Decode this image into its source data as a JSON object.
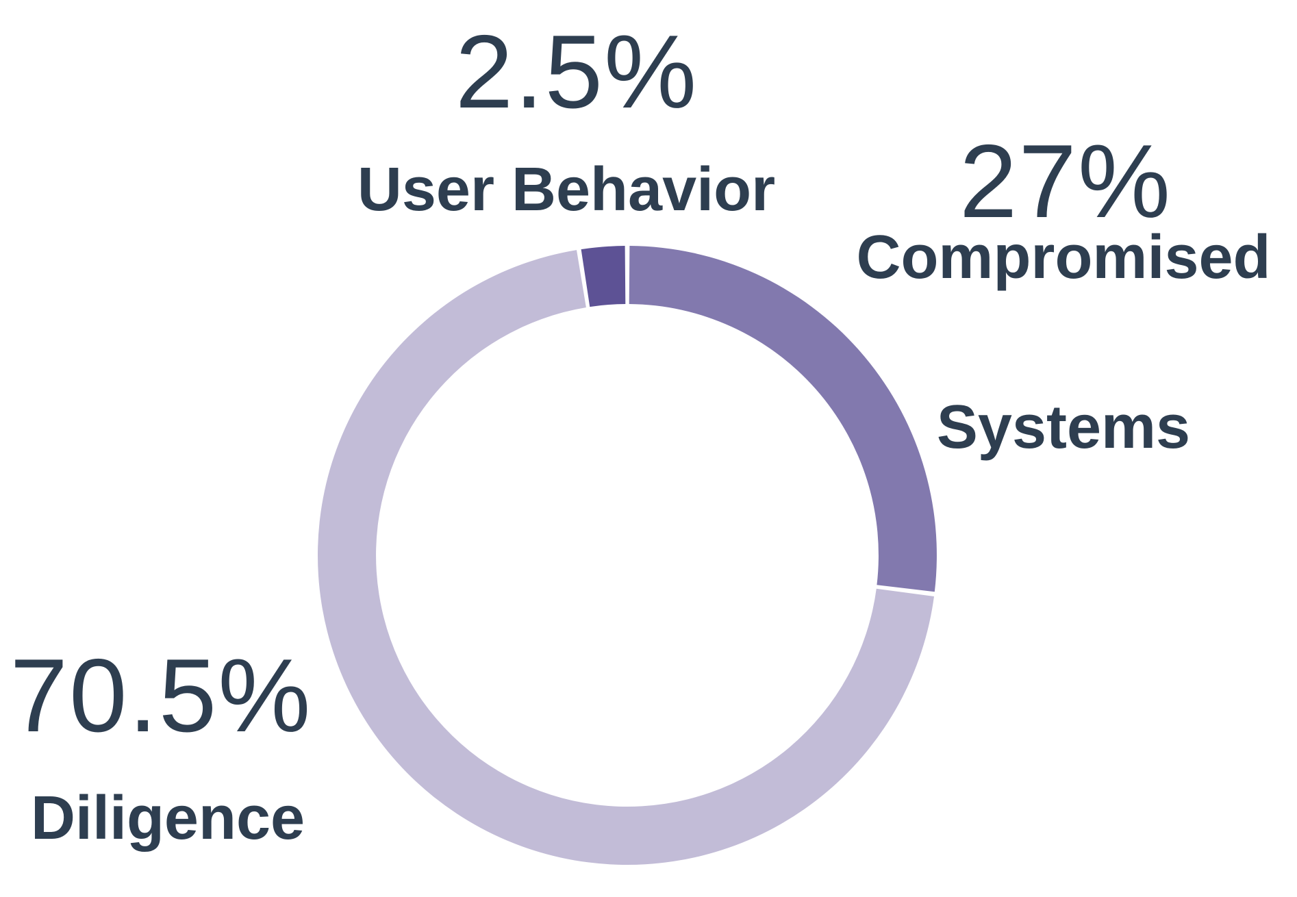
{
  "page": {
    "background": "#ffffff"
  },
  "colors": {
    "text": "#2e3e50",
    "segment_compromised_systems": "#8279ae",
    "segment_diligence": "#c2bcd7",
    "segment_user_behavior": "#5d5295"
  },
  "chart_data": {
    "type": "pie",
    "variant": "donut",
    "title": "",
    "legend_position": "callout-labels-outside",
    "start_angle": "top",
    "direction": "clockwise",
    "categories": [
      "Compromised Systems",
      "Diligence",
      "User Behavior"
    ],
    "values": [
      27,
      70.5,
      2.5
    ],
    "segments": [
      {
        "id": "compromised-systems",
        "label": "Compromised Systems",
        "value": 27,
        "display": "27%",
        "color": "#8279ae"
      },
      {
        "id": "diligence",
        "label": "Diligence",
        "value": 70.5,
        "display": "70.5%",
        "color": "#c2bcd7"
      },
      {
        "id": "user-behavior",
        "label": "User Behavior",
        "value": 2.5,
        "display": "2.5%",
        "color": "#5d5295"
      }
    ]
  },
  "annotations": {
    "user_behavior": {
      "percent": "2.5%",
      "label": "User Behavior"
    },
    "compromised": {
      "percent": "27%",
      "label_line1": "Compromised",
      "label_line2": "Systems"
    },
    "diligence": {
      "percent": "70.5%",
      "label": "Diligence"
    }
  }
}
